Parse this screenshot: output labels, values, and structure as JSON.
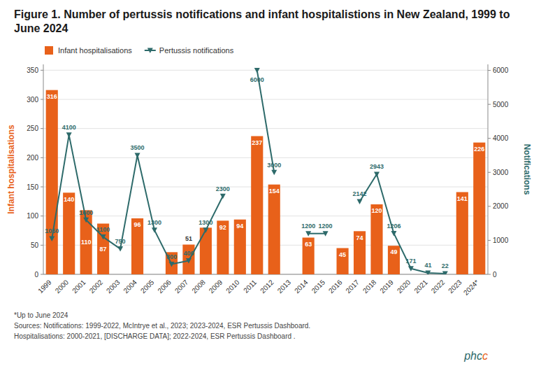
{
  "chart_data": {
    "type": "bar",
    "title": "Figure 1. Number of pertussis notifications and infant hospitalistions in New Zealand, 1999 to June 2024",
    "categories": [
      "1999",
      "2000",
      "2001",
      "2002",
      "2003",
      "2004",
      "2005",
      "2006",
      "2007",
      "2008",
      "2009",
      "2010",
      "2011",
      "2012",
      "2013",
      "2014",
      "2015",
      "2016",
      "2017",
      "2018",
      "2019",
      "2020",
      "2021",
      "2022",
      "2023",
      "2024*"
    ],
    "series": [
      {
        "name": "Infant hospitalisations",
        "type": "bar",
        "color": "#E8611A",
        "values": [
          316,
          140,
          110,
          87,
          0,
          96,
          0,
          38,
          51,
          80,
          92,
          94,
          237,
          154,
          0,
          63,
          0,
          45,
          74,
          120,
          49,
          0,
          0,
          0,
          141,
          226
        ],
        "data_labels": true,
        "value_labels": [
          "316",
          "140",
          "110",
          "87",
          null,
          "96",
          null,
          null,
          "51",
          null,
          "92",
          "94",
          "237",
          "154",
          null,
          "63",
          null,
          "45",
          "74",
          "120",
          "49",
          null,
          null,
          null,
          "141",
          "226"
        ]
      },
      {
        "name": "Pertussis notifications",
        "type": "line",
        "axis": "y2",
        "color": "#2D6A6A",
        "marker": "triangle-down",
        "values": [
          1050,
          4100,
          1600,
          1100,
          750,
          3500,
          1300,
          300,
          400,
          1300,
          2300,
          null,
          6000,
          3000,
          null,
          1200,
          1200,
          null,
          2142,
          2943,
          1206,
          171,
          41,
          22,
          null,
          null
        ],
        "data_labels": true
      }
    ],
    "ylabel": "Infant hospitalisations",
    "y2label": "Notifications",
    "ylim": [
      0,
      360
    ],
    "yticks": [
      0,
      50,
      100,
      150,
      200,
      250,
      300,
      350
    ],
    "y2lim": [
      0,
      6176
    ],
    "y2ticks": [
      0,
      1000,
      2000,
      3000,
      4000,
      5000,
      6000
    ],
    "grid": true,
    "legend": "upper left",
    "annotations": [
      "*Up to June 2024",
      "Sources: Notifications: 1999-2022, McIntrye et al., 2023; 2023-2024, ESR Pertussis Dashboard.",
      "Hospitalisations: 2000-2021, [DISCHARGE DATA]; 2022-2024, ESR Pertussis Dashboard .",
      "phcc"
    ]
  }
}
